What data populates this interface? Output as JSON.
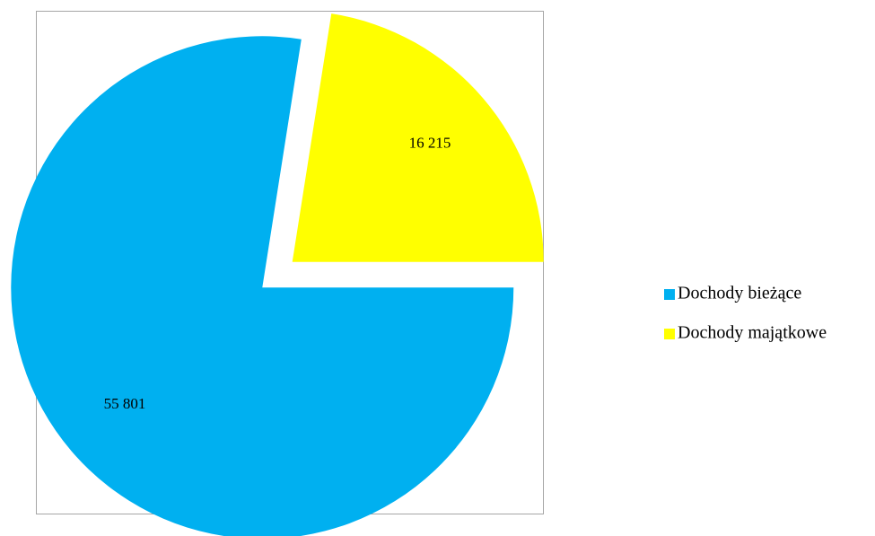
{
  "chart_data": {
    "type": "pie",
    "categories": [
      "Dochody bieżące",
      "Dochody majątkowe"
    ],
    "values": [
      55801,
      16215
    ],
    "value_labels": [
      "55 801",
      "16 215"
    ],
    "colors": [
      "#00b0f0",
      "#ffff00"
    ],
    "legend": "right"
  }
}
